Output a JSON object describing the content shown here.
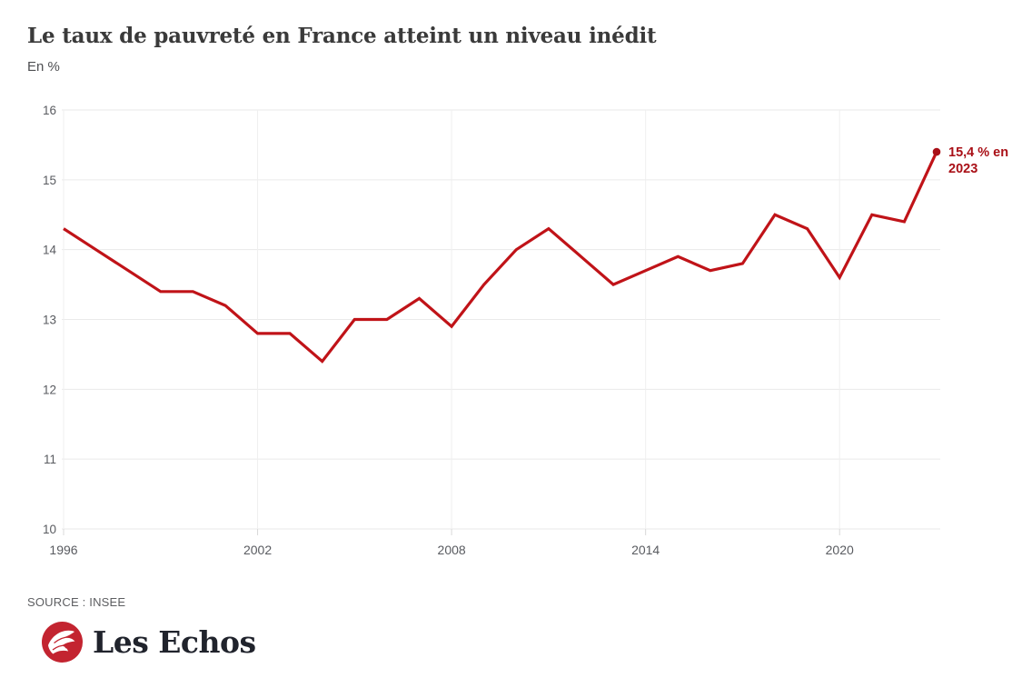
{
  "header": {
    "title": "Le taux de pauvreté en France atteint un niveau inédit",
    "subtitle": "En %"
  },
  "annotation": {
    "line1": "15,4 % en",
    "line2": "2023"
  },
  "footer": {
    "source": "SOURCE : INSEE",
    "brand": "Les Echos"
  },
  "colors": {
    "line": "#c01318",
    "accent": "#a91017",
    "grid_h": "#eaeaea",
    "grid_v": "#efefef",
    "tick_stub": "#d8d8d8",
    "axis_text": "#595b60",
    "logo_red": "#c32430"
  },
  "chart_data": {
    "type": "line",
    "title": "Le taux de pauvreté en France atteint un niveau inédit",
    "xlabel": "",
    "ylabel": "En %",
    "x": [
      1996,
      1997,
      1998,
      1999,
      2000,
      2001,
      2002,
      2003,
      2004,
      2005,
      2006,
      2007,
      2008,
      2009,
      2010,
      2011,
      2012,
      2013,
      2014,
      2015,
      2016,
      2017,
      2018,
      2019,
      2020,
      2021,
      2022,
      2023
    ],
    "series": [
      {
        "name": "Taux de pauvreté",
        "values": [
          14.3,
          14.0,
          13.7,
          13.4,
          13.4,
          13.2,
          12.8,
          12.8,
          12.4,
          13.0,
          13.0,
          13.3,
          12.9,
          13.5,
          14.0,
          14.3,
          13.9,
          13.5,
          13.7,
          13.9,
          13.7,
          13.8,
          14.5,
          14.3,
          13.6,
          14.5,
          14.4,
          15.4
        ]
      }
    ],
    "ylim": [
      10,
      16
    ],
    "yticks": [
      16,
      15,
      14,
      13,
      12,
      11,
      10
    ],
    "xticks": [
      1996,
      2002,
      2008,
      2014,
      2020
    ],
    "grid": true,
    "legend": "none",
    "annotation": "15,4 % en 2023",
    "source": "INSEE"
  }
}
